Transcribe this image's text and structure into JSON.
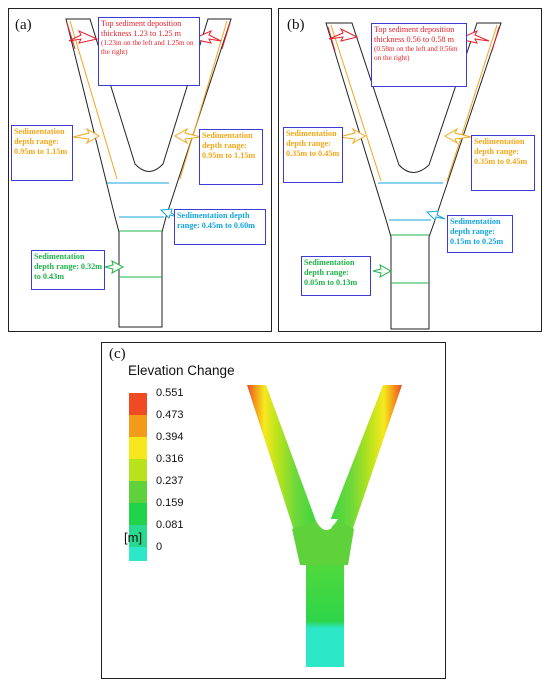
{
  "panel_a": {
    "label": "(a)",
    "top_note": {
      "title": "Top sediment deposition thickness 1.23 to 1.25 m",
      "detail": "(1.23m on the left and 1.25m on the right)"
    },
    "left_branch": "Sedimentation depth range: 0.95m to 1.15m",
    "right_branch": "Sedimentation depth range: 0.95m to 1.15m",
    "junction": "Sedimentation depth range: 0.45m to 0.60m",
    "stem": "Sedimentation depth range: 0.32m to 0.43m"
  },
  "panel_b": {
    "label": "(b)",
    "top_note": {
      "title": "Top sediment deposition thickness 0.56 to 0.58 m",
      "detail": "(0.58m on the left and 0.56m on the right)"
    },
    "left_branch": "Sedimentation depth range: 0.35m to 0.45m",
    "right_branch": "Sedimentation depth range: 0.35m to 0.45m",
    "junction": "Sedimentation depth range: 0.15m to 0.25m",
    "stem": "Sedimentation depth range: 0.05m to 0.13m"
  },
  "panel_c": {
    "label": "(c)",
    "legend_title": "Elevation Change",
    "legend_values": [
      "0.551",
      "0.473",
      "0.394",
      "0.316",
      "0.237",
      "0.159",
      "0.081",
      "0"
    ],
    "unit": "[m]",
    "colors": [
      "#f04a24",
      "#f29a1a",
      "#f7e81e",
      "#b8e31c",
      "#5fd13a",
      "#20d34a",
      "#28d98e",
      "#2ce8c9"
    ]
  },
  "colors": {
    "red": "#e8202a",
    "orange": "#f2a71b",
    "cyan": "#16a5dc",
    "green": "#20b34a",
    "box_border": "#3b3bd6"
  }
}
